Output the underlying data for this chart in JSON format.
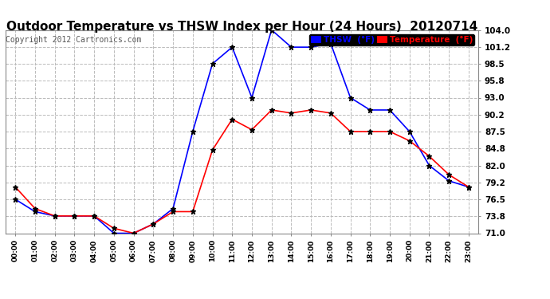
{
  "title": "Outdoor Temperature vs THSW Index per Hour (24 Hours)  20120714",
  "copyright": "Copyright 2012 Cartronics.com",
  "hours": [
    "00:00",
    "01:00",
    "02:00",
    "03:00",
    "04:00",
    "05:00",
    "06:00",
    "07:00",
    "08:00",
    "09:00",
    "10:00",
    "11:00",
    "12:00",
    "13:00",
    "14:00",
    "15:00",
    "16:00",
    "17:00",
    "18:00",
    "19:00",
    "20:00",
    "21:00",
    "22:00",
    "23:00"
  ],
  "thsw": [
    76.5,
    74.5,
    73.8,
    73.8,
    73.8,
    71.0,
    71.0,
    72.5,
    75.0,
    87.5,
    98.5,
    101.2,
    93.0,
    104.0,
    101.2,
    101.2,
    101.8,
    93.0,
    91.0,
    91.0,
    87.5,
    82.0,
    79.5,
    78.5
  ],
  "temperature": [
    78.5,
    75.0,
    73.8,
    73.8,
    73.8,
    71.8,
    71.0,
    72.5,
    74.5,
    74.5,
    84.5,
    89.5,
    87.8,
    91.0,
    90.5,
    91.0,
    90.5,
    87.5,
    87.5,
    87.5,
    86.0,
    83.5,
    80.5,
    78.5
  ],
  "thsw_color": "#0000FF",
  "temp_color": "#FF0000",
  "ylim": [
    71.0,
    104.0
  ],
  "yticks": [
    71.0,
    73.8,
    76.5,
    79.2,
    82.0,
    84.8,
    87.5,
    90.2,
    93.0,
    95.8,
    98.5,
    101.2,
    104.0
  ],
  "background_color": "#FFFFFF",
  "grid_color": "#BBBBBB",
  "title_fontsize": 11,
  "copyright_fontsize": 7,
  "legend_thsw_label": "THSW  (°F)",
  "legend_temp_label": "Temperature  (°F)"
}
